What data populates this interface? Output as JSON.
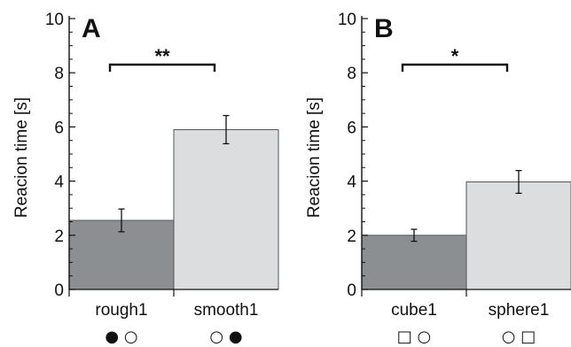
{
  "chart_data": [
    {
      "type": "bar",
      "panel_label": "A",
      "categories": [
        "rough1",
        "smooth1"
      ],
      "values": [
        2.55,
        5.9
      ],
      "errors": [
        0.42,
        0.52
      ],
      "bar_colors": [
        "#8c8f91",
        "#dcdddf"
      ],
      "ylabel": "Reacion time [s]",
      "ylim": [
        0,
        10
      ],
      "yticks": [
        "0",
        "2",
        "4",
        "6",
        "8",
        "10"
      ],
      "significance": "**",
      "stimulus_symbols": [
        "● ○",
        "○ ●"
      ]
    },
    {
      "type": "bar",
      "panel_label": "B",
      "categories": [
        "cube1",
        "sphere1"
      ],
      "values": [
        2.0,
        3.97
      ],
      "errors": [
        0.22,
        0.42
      ],
      "bar_colors": [
        "#8c8f91",
        "#dcdddf"
      ],
      "ylabel": "Reacion time [s]",
      "ylim": [
        0,
        10
      ],
      "yticks": [
        "0",
        "2",
        "4",
        "6",
        "8",
        "10"
      ],
      "significance": "*",
      "stimulus_symbols": [
        "□ ○",
        "○ □"
      ]
    }
  ]
}
